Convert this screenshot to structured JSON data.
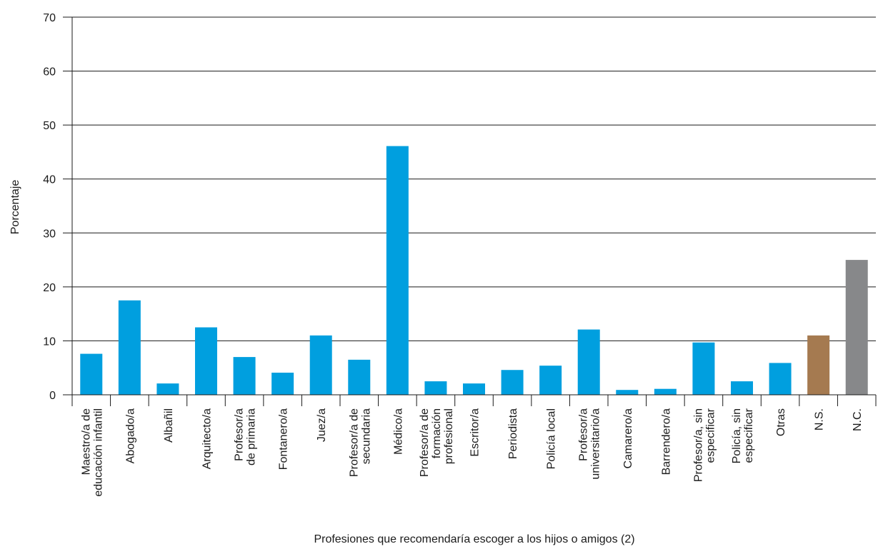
{
  "chart_data": {
    "type": "bar",
    "xlabel": "Profesiones que recomendaría escoger a los hijos o amigos (2)",
    "ylabel": "Porcentaje",
    "ylim": [
      0,
      70
    ],
    "yticks": [
      0,
      10,
      20,
      30,
      40,
      50,
      60,
      70
    ],
    "grid": "horizontal",
    "categories": [
      [
        "Maestro/a de",
        "educación infantil"
      ],
      [
        "Abogado/a"
      ],
      [
        "Albañil"
      ],
      [
        "Arquitecto/a"
      ],
      [
        "Profesor/a",
        "de primaria"
      ],
      [
        "Fontanero/a"
      ],
      [
        "Juez/a"
      ],
      [
        "Profesor/a de",
        "secundaria"
      ],
      [
        "Médico/a"
      ],
      [
        "Profesor/a de",
        "formación",
        "profesional"
      ],
      [
        "Escritor/a"
      ],
      [
        "Periodista"
      ],
      [
        "Policía local"
      ],
      [
        "Profesor/a",
        "universitario/a"
      ],
      [
        "Camarero/a"
      ],
      [
        "Barrendero/a"
      ],
      [
        "Profesor/a, sin",
        "especificar"
      ],
      [
        "Policía, sin",
        "especificar"
      ],
      [
        "Otras"
      ],
      [
        "N.S."
      ],
      [
        "N.C."
      ]
    ],
    "values": [
      7.6,
      17.5,
      2.1,
      12.5,
      7.0,
      4.1,
      11.0,
      6.5,
      46.1,
      2.5,
      2.1,
      4.6,
      5.4,
      12.1,
      0.9,
      1.1,
      9.7,
      2.5,
      5.9,
      11.0,
      25.0
    ],
    "colors": {
      "default": "#009fdf",
      "N.S.": "#a57a50",
      "N.C.": "#87888a",
      "grid": "#1a1a1a"
    }
  }
}
